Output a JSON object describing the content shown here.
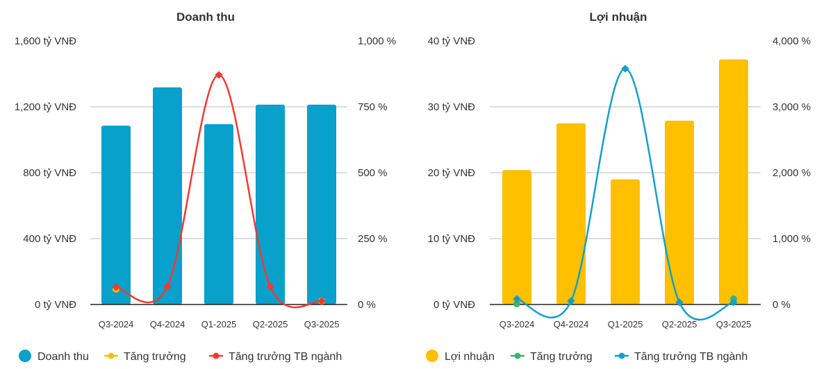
{
  "chart_data": [
    {
      "type": "bar+line",
      "title": "Doanh thu",
      "categories": [
        "Q3-2024",
        "Q4-2024",
        "Q1-2025",
        "Q2-2025",
        "Q3-2025"
      ],
      "left_axis": {
        "ticks": [
          "0 tỷ VNĐ",
          "400 tỷ VNĐ",
          "800 tỷ VNĐ",
          "1,200 tỷ VNĐ",
          "1,600 tỷ VNĐ"
        ],
        "range": [
          0,
          1600
        ],
        "unit": "tỷ VNĐ"
      },
      "right_axis": {
        "ticks": [
          "0 %",
          "250 %",
          "500 %",
          "750 %",
          "1,000 %"
        ],
        "range": [
          0,
          1000
        ],
        "unit": "%"
      },
      "series": [
        {
          "name": "Doanh thu",
          "kind": "bar",
          "axis": "left",
          "color": "#0aa0cc",
          "values": [
            1086,
            1318,
            1095,
            1213,
            1213
          ]
        },
        {
          "name": "Tăng trưởng",
          "kind": "points",
          "axis": "right",
          "color": "#f5c000",
          "values": [
            58,
            null,
            null,
            null,
            13
          ]
        },
        {
          "name": "Tăng trưởng TB ngành",
          "kind": "line",
          "axis": "right",
          "color": "#ee3b32",
          "values": [
            66,
            68,
            871,
            68,
            13
          ]
        }
      ],
      "legend": "bottom"
    },
    {
      "type": "bar+line",
      "title": "Lợi nhuận",
      "categories": [
        "Q3-2024",
        "Q4-2024",
        "Q1-2025",
        "Q2-2025",
        "Q3-2025"
      ],
      "left_axis": {
        "ticks": [
          "0 tỷ VNĐ",
          "10 tỷ VNĐ",
          "20 tỷ VNĐ",
          "30 tỷ VNĐ",
          "40 tỷ VNĐ"
        ],
        "range": [
          0,
          40
        ],
        "unit": "tỷ VNĐ"
      },
      "right_axis": {
        "ticks": [
          "0 %",
          "1,000 %",
          "2,000 %",
          "3,000 %",
          "4,000 %"
        ],
        "range": [
          0,
          4000
        ],
        "unit": "%"
      },
      "series": [
        {
          "name": "Lợi nhuận",
          "kind": "bar",
          "axis": "left",
          "color": "#ffc000",
          "values": [
            20.4,
            27.5,
            19.0,
            27.9,
            37.2
          ]
        },
        {
          "name": "Tăng trưởng",
          "kind": "points",
          "axis": "right",
          "color": "#3cb371",
          "values": [
            10,
            null,
            null,
            null,
            84
          ]
        },
        {
          "name": "Tăng trưởng TB ngành",
          "kind": "line",
          "axis": "right",
          "color": "#139fc9",
          "values": [
            84,
            53,
            3579,
            32,
            32
          ]
        }
      ],
      "legend": "bottom"
    }
  ]
}
